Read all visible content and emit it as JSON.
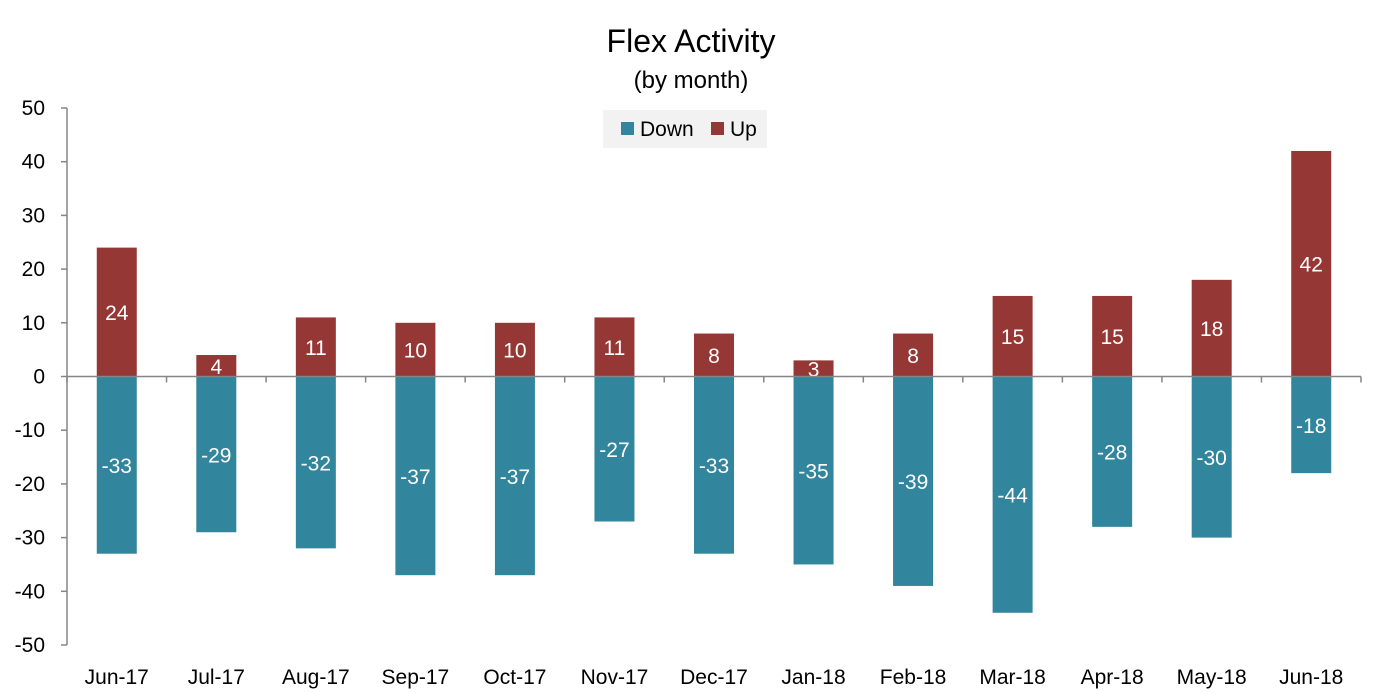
{
  "chart_data": {
    "type": "bar",
    "title": "Flex Activity",
    "subtitle": "(by month)",
    "categories": [
      "Jun-17",
      "Jul-17",
      "Aug-17",
      "Sep-17",
      "Oct-17",
      "Nov-17",
      "Dec-17",
      "Jan-18",
      "Feb-18",
      "Mar-18",
      "Apr-18",
      "May-18",
      "Jun-18"
    ],
    "series": [
      {
        "name": "Down",
        "color": "#31859c",
        "values": [
          -33,
          -29,
          -32,
          -37,
          -37,
          -27,
          -33,
          -35,
          -39,
          -44,
          -28,
          -30,
          -18
        ]
      },
      {
        "name": "Up",
        "color": "#953735",
        "values": [
          24,
          4,
          11,
          10,
          10,
          11,
          8,
          3,
          8,
          15,
          15,
          18,
          42
        ]
      }
    ],
    "ylim": [
      -50,
      50
    ],
    "yticks": [
      50,
      40,
      30,
      20,
      10,
      0,
      -10,
      -20,
      -30,
      -40,
      -50
    ],
    "grid": false,
    "legend": "top-center"
  }
}
